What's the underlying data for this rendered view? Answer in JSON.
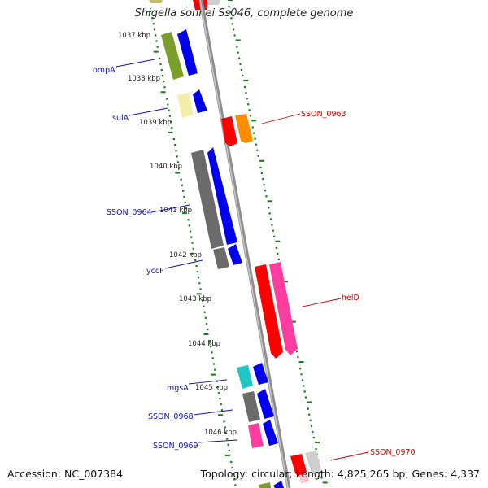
{
  "title": "Shigella sonnei Ss046, complete genome",
  "footer": {
    "accession": "Accession: NC_007384",
    "topology": "Topology: circular; Length: 4,825,265 bp; Genes: 4,337"
  },
  "ticks": [
    "1037 kbp",
    "1038 kbp",
    "1039 kbp",
    "1040 kbp",
    "1041 kbp",
    "1042 kbp",
    "1043 kbp",
    "1044 kbp",
    "1045 kbp",
    "1046 kbp"
  ],
  "genes_forward": [
    {
      "name": "ompA",
      "color": "#7a9e2a"
    },
    {
      "name": "sulA",
      "color": "#f3eea8"
    },
    {
      "name": "SSON_0964",
      "color": "#6b6b6b"
    },
    {
      "name": "yccF",
      "color": "#6b6b6b"
    },
    {
      "name": "mgsA",
      "color": "#22c4c4"
    },
    {
      "name": "SSON_0968",
      "color": "#6b6b6b"
    },
    {
      "name": "SSON_0969",
      "color": "#ff3d9e"
    }
  ],
  "genes_reverse": [
    {
      "name": "SSON_0963",
      "color": "#ff0000"
    },
    {
      "name": "helD",
      "color": "#ff0000"
    },
    {
      "name": "SSON_0970",
      "color": "#ff0000"
    }
  ],
  "colors": {
    "forward_label": "#1010b0",
    "reverse_label": "#d00000",
    "arrow_blue": "#0000ee",
    "arrow_orange": "#ff8c00",
    "arrow_pink": "#ff3da0",
    "axis_gray": "#9a9a9a",
    "tick_green": "#1a7a1a"
  }
}
